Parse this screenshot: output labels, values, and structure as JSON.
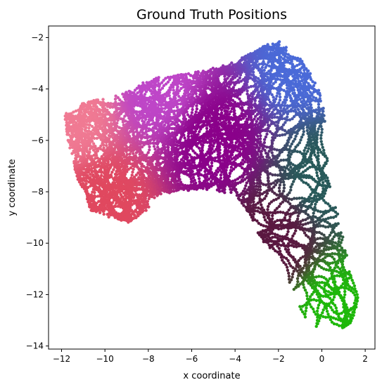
{
  "chart_data": {
    "type": "scatter",
    "title": "Ground Truth Positions",
    "xlabel": "x coordinate",
    "ylabel": "y coordinate",
    "xlim": [
      -12.6,
      2.45
    ],
    "ylim": [
      -14.12,
      -1.55
    ],
    "xticks": [
      -12,
      -10,
      -8,
      -6,
      -4,
      -2,
      0,
      2
    ],
    "yticks": [
      -14,
      -12,
      -10,
      -8,
      -6,
      -4,
      -2
    ],
    "grid": false,
    "legend": "none",
    "color_encoding": {
      "top_left": "#f07a93",
      "left": "#e0485f",
      "center": "#8a008a",
      "top_right": "#4a6ad8",
      "bottom_right": "#1eb80a",
      "lower_middle": "#5a1840"
    },
    "outline": [
      [
        -11.9,
        -5.0
      ],
      [
        -11.0,
        -4.55
      ],
      [
        -9.0,
        -4.1
      ],
      [
        -8.0,
        -3.6
      ],
      [
        -7.0,
        -3.5
      ],
      [
        -5.5,
        -3.3
      ],
      [
        -4.2,
        -3.0
      ],
      [
        -3.0,
        -2.5
      ],
      [
        -2.5,
        -2.25
      ],
      [
        -2.0,
        -2.1
      ],
      [
        -1.5,
        -2.45
      ],
      [
        -1.0,
        -2.8
      ],
      [
        -0.6,
        -3.3
      ],
      [
        -0.2,
        -3.8
      ],
      [
        0.1,
        -4.8
      ],
      [
        0.2,
        -6.0
      ],
      [
        0.3,
        -7.5
      ],
      [
        0.8,
        -9.0
      ],
      [
        1.1,
        -10.2
      ],
      [
        1.4,
        -11.3
      ],
      [
        1.7,
        -12.2
      ],
      [
        1.5,
        -13.0
      ],
      [
        0.6,
        -13.5
      ],
      [
        -0.3,
        -13.3
      ],
      [
        -1.0,
        -12.7
      ],
      [
        -1.3,
        -11.9
      ],
      [
        -1.6,
        -11.3
      ],
      [
        -2.2,
        -10.5
      ],
      [
        -2.9,
        -9.7
      ],
      [
        -3.4,
        -8.8
      ],
      [
        -3.9,
        -8.2
      ],
      [
        -4.6,
        -8.0
      ],
      [
        -5.5,
        -7.9
      ],
      [
        -6.5,
        -8.0
      ],
      [
        -7.5,
        -8.1
      ],
      [
        -8.0,
        -8.7
      ],
      [
        -8.9,
        -9.2
      ],
      [
        -9.8,
        -9.0
      ],
      [
        -10.7,
        -8.7
      ],
      [
        -11.3,
        -7.4
      ],
      [
        -11.7,
        -6.0
      ]
    ]
  }
}
